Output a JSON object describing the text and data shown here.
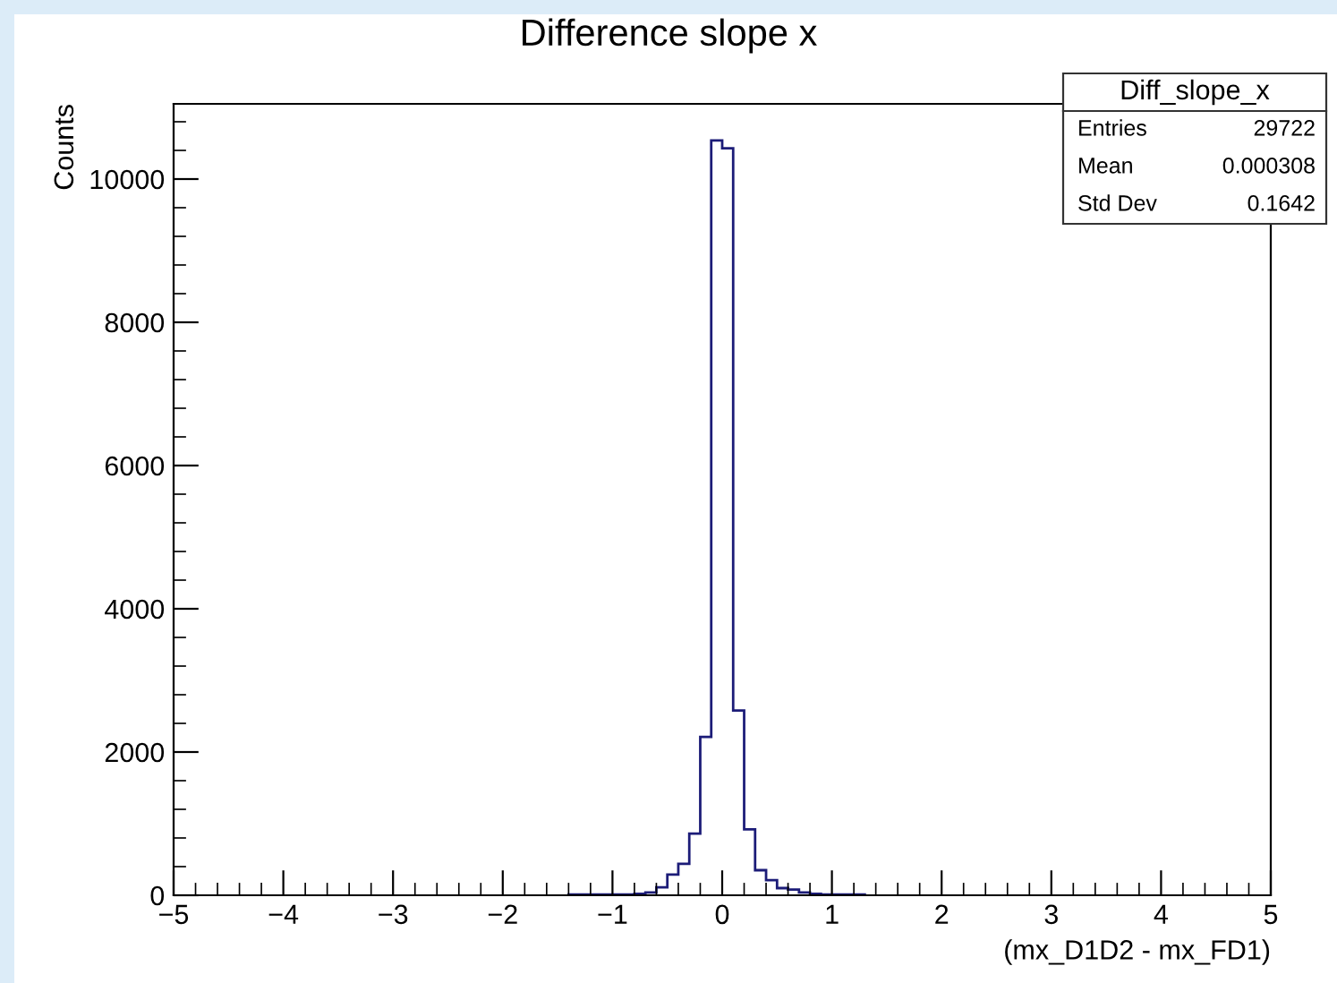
{
  "chart_data": {
    "type": "histogram",
    "title": "Difference slope x",
    "xlabel": "(mx_D1D2 - mx_FD1)",
    "ylabel": "Counts",
    "bins": [
      -1.4,
      -1.3,
      -1.2,
      -1.1,
      -1.0,
      -0.9,
      -0.8,
      -0.7,
      -0.6,
      -0.5,
      -0.4,
      -0.3,
      -0.2,
      -0.1,
      0.0,
      0.1,
      0.2,
      0.3,
      0.4,
      0.5,
      0.6,
      0.7,
      0.8,
      0.9,
      1.0,
      1.1,
      1.2,
      1.3
    ],
    "values": [
      10,
      10,
      10,
      10,
      10,
      10,
      20,
      40,
      110,
      290,
      440,
      860,
      2210,
      10540,
      10430,
      2580,
      920,
      350,
      210,
      100,
      80,
      40,
      20,
      10,
      10,
      10,
      10
    ],
    "color": "#1c1c78",
    "xlim": [
      -5,
      5
    ],
    "xticks": [
      -5,
      -4,
      -3,
      -2,
      -1,
      0,
      1,
      2,
      3,
      4,
      5
    ],
    "ylim": [
      0,
      11050
    ],
    "yticks": [
      0,
      2000,
      4000,
      6000,
      8000,
      10000
    ],
    "grid": false,
    "annotations": [
      "Diff_slope_x",
      "Entries",
      "29722",
      "Mean",
      "0.000308",
      "Std Dev",
      "0.1642"
    ]
  }
}
